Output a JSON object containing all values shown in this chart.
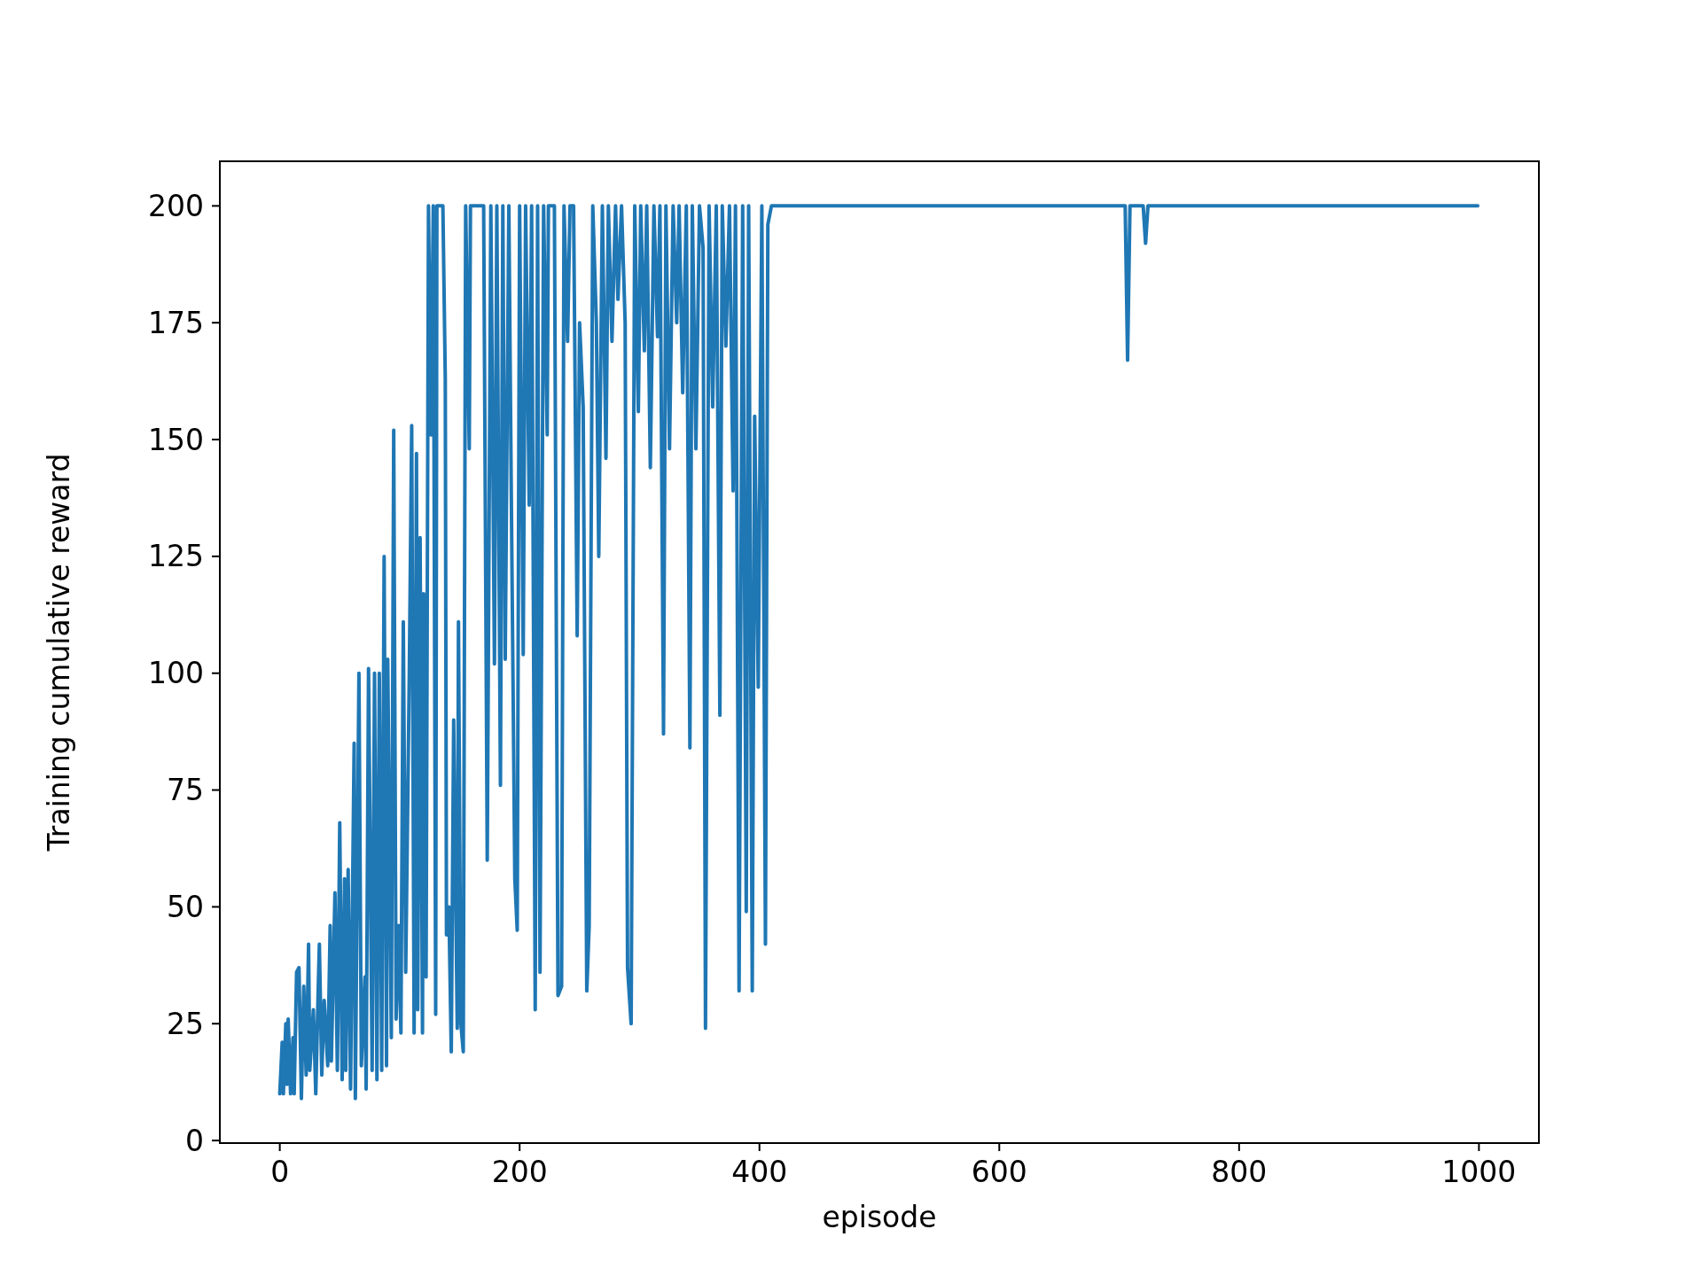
{
  "chart_data": {
    "type": "line",
    "xlabel": "episode",
    "ylabel": "Training cumulative reward",
    "xlim": [
      -50,
      1050
    ],
    "ylim": [
      -0.55,
      209.55
    ],
    "xticks": [
      0,
      200,
      400,
      600,
      800,
      1000
    ],
    "yticks": [
      0,
      25,
      50,
      75,
      100,
      125,
      150,
      175,
      200
    ],
    "grid": false,
    "series": [
      {
        "color": "#1f77b4",
        "x": [
          0,
          2,
          3,
          5,
          6,
          7,
          9,
          11,
          12,
          14,
          16,
          18,
          20,
          22,
          24,
          25,
          28,
          30,
          32,
          33,
          35,
          37,
          40,
          42,
          43,
          46,
          48,
          50,
          52,
          54,
          55,
          57,
          59,
          62,
          63,
          66,
          68,
          71,
          72,
          74,
          77,
          79,
          81,
          83,
          85,
          87,
          89,
          90,
          93,
          95,
          97,
          99,
          101,
          103,
          105,
          108,
          110,
          112,
          114,
          115,
          117,
          119,
          120,
          122,
          124,
          126,
          128,
          130,
          131,
          134,
          136,
          138,
          139,
          141,
          143,
          145,
          148,
          149,
          151,
          153,
          155,
          158,
          159,
          162,
          165,
          168,
          170,
          173,
          176,
          179,
          181,
          184,
          186,
          188,
          191,
          193,
          196,
          198,
          200,
          203,
          205,
          208,
          210,
          213,
          215,
          217,
          220,
          223,
          224,
          227,
          229,
          232,
          235,
          237,
          240,
          242,
          245,
          248,
          250,
          253,
          256,
          258,
          261,
          264,
          266,
          269,
          272,
          274,
          277,
          280,
          282,
          285,
          288,
          290,
          293,
          296,
          299,
          301,
          304,
          306,
          309,
          312,
          315,
          317,
          320,
          322,
          325,
          328,
          331,
          333,
          336,
          339,
          342,
          344,
          347,
          350,
          353,
          355,
          358,
          361,
          364,
          367,
          369,
          372,
          375,
          378,
          380,
          383,
          386,
          389,
          391,
          394,
          396,
          399,
          402,
          405,
          407,
          410,
          705,
          707,
          709,
          720,
          722,
          724,
          999
        ],
        "values": [
          10,
          21,
          10,
          25,
          12,
          26,
          10,
          22,
          10,
          36,
          37,
          9,
          33,
          14,
          42,
          15,
          28,
          10,
          32,
          42,
          14,
          30,
          16,
          46,
          17,
          53,
          15,
          68,
          13,
          56,
          15,
          58,
          11,
          85,
          9,
          100,
          16,
          35,
          11,
          101,
          15,
          100,
          13,
          100,
          15,
          125,
          16,
          103,
          22,
          152,
          26,
          46,
          23,
          111,
          36,
          100,
          153,
          23,
          147,
          28,
          129,
          23,
          117,
          35,
          200,
          151,
          200,
          27,
          200,
          200,
          200,
          163,
          44,
          50,
          19,
          90,
          24,
          111,
          25,
          19,
          200,
          148,
          200,
          200,
          200,
          200,
          200,
          60,
          200,
          102,
          200,
          76,
          200,
          103,
          200,
          140,
          56,
          45,
          200,
          104,
          200,
          136,
          200,
          28,
          200,
          36,
          200,
          151,
          200,
          200,
          200,
          31,
          33,
          200,
          171,
          200,
          200,
          108,
          175,
          157,
          32,
          46,
          200,
          175,
          125,
          200,
          146,
          200,
          171,
          200,
          180,
          200,
          175,
          37,
          25,
          200,
          156,
          200,
          169,
          200,
          144,
          200,
          172,
          200,
          87,
          200,
          148,
          200,
          175,
          200,
          160,
          200,
          84,
          200,
          148,
          200,
          191,
          24,
          200,
          157,
          200,
          91,
          200,
          170,
          200,
          139,
          200,
          32,
          200,
          49,
          200,
          32,
          155,
          97,
          200,
          42,
          196,
          200,
          200,
          167,
          200,
          200,
          192,
          200,
          200
        ]
      }
    ]
  }
}
